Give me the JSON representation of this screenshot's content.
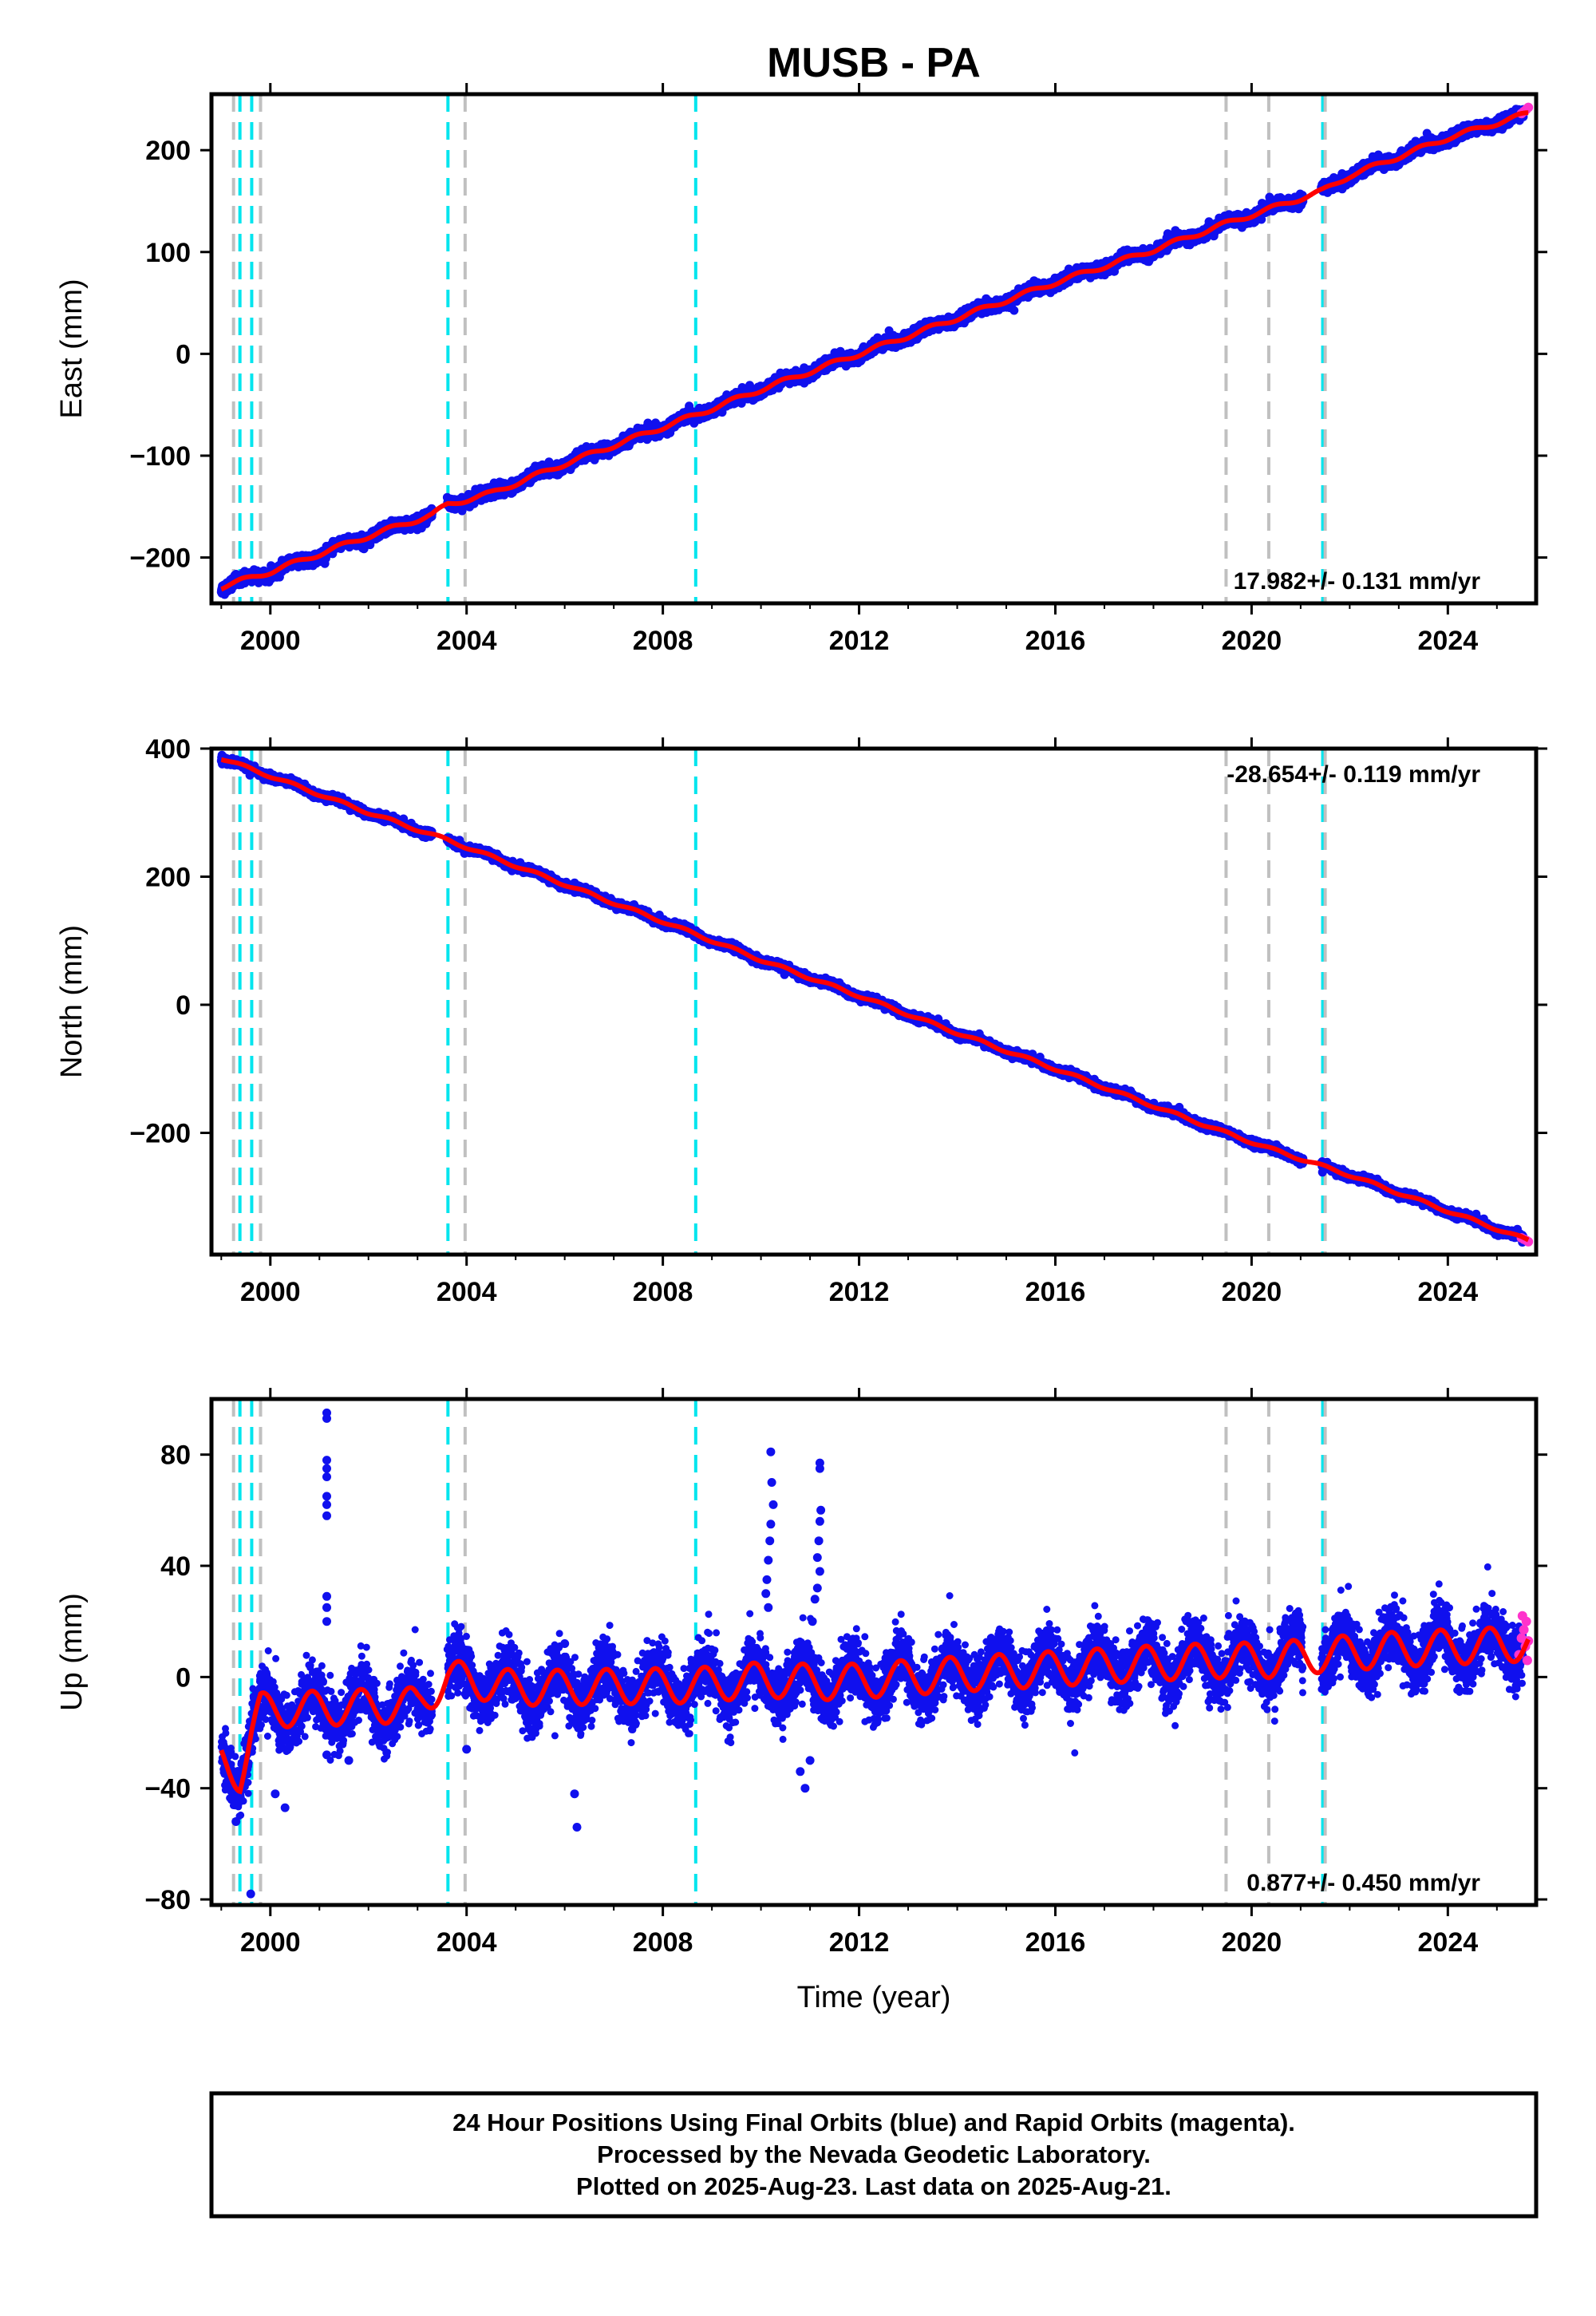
{
  "chart_data": {
    "type": "scatter",
    "title": "MUSB - PA",
    "xlabel": "Time (year)",
    "xlim": [
      1998.8,
      2025.8
    ],
    "x_ticks": [
      2000,
      2004,
      2008,
      2012,
      2016,
      2020,
      2024
    ],
    "x_tick_labels": [
      "2000",
      "2004",
      "2008",
      "2012",
      "2016",
      "2020",
      "2024"
    ],
    "data_start": 1999.0,
    "data_end": 2025.64,
    "steps": [
      {
        "year": 1999.38,
        "kind": "cyan"
      },
      {
        "year": 1999.62,
        "kind": "cyan"
      },
      {
        "year": 1999.25,
        "kind": "gray"
      },
      {
        "year": 1999.8,
        "kind": "gray"
      },
      {
        "year": 2003.62,
        "kind": "cyan"
      },
      {
        "year": 2003.97,
        "kind": "gray"
      },
      {
        "year": 2008.67,
        "kind": "cyan"
      },
      {
        "year": 2019.48,
        "kind": "gray"
      },
      {
        "year": 2020.35,
        "kind": "gray"
      },
      {
        "year": 2021.45,
        "kind": "cyan"
      },
      {
        "year": 2021.5,
        "kind": "gray"
      }
    ],
    "series_colors": {
      "final": "#1010ee",
      "rapid": "#ff33cc",
      "model": "#ff0000",
      "step_cyan": "#00e5ee",
      "step_gray": "#c0c0c0"
    },
    "panels": [
      {
        "name": "east",
        "ylabel": "East (mm)",
        "ylim": [
          -245,
          255
        ],
        "y_ticks": [
          -200,
          -100,
          0,
          100,
          200
        ],
        "y_tick_labels": [
          "−200",
          "−100",
          "0",
          "100",
          "200"
        ],
        "rate_label": "17.982+/- 0.131 mm/yr",
        "rate_position": "bottom-right",
        "model_points": [
          [
            1999.0,
            -229
          ],
          [
            2000.0,
            -214
          ],
          [
            2002.0,
            -179
          ],
          [
            2003.3,
            -158
          ],
          [
            2003.62,
            -148
          ],
          [
            2004.5,
            -137
          ],
          [
            2006.0,
            -108
          ],
          [
            2008.0,
            -72
          ],
          [
            2008.67,
            -60
          ],
          [
            2010.0,
            -35
          ],
          [
            2012.0,
            0
          ],
          [
            2014.0,
            35
          ],
          [
            2016.0,
            70
          ],
          [
            2018.0,
            102
          ],
          [
            2019.48,
            128
          ],
          [
            2020.35,
            142
          ],
          [
            2021.45,
            160
          ],
          [
            2022.0,
            175
          ],
          [
            2024.0,
            212
          ],
          [
            2025.64,
            236
          ]
        ],
        "seasonal_amp": 2.5,
        "noise": 2.5,
        "rapid_points": [
          [
            2025.5,
            236
          ],
          [
            2025.55,
            238
          ],
          [
            2025.6,
            240
          ],
          [
            2025.64,
            242
          ]
        ]
      },
      {
        "name": "north",
        "ylabel": "North (mm)",
        "ylim": [
          -390,
          400
        ],
        "y_ticks": [
          -200,
          0,
          200,
          400
        ],
        "y_tick_labels": [
          "−200",
          "0",
          "200",
          "400"
        ],
        "rate_label": "-28.654+/- 0.119 mm/yr",
        "rate_position": "top-right",
        "model_points": [
          [
            1999.0,
            385
          ],
          [
            2000.0,
            357
          ],
          [
            2002.0,
            300
          ],
          [
            2003.62,
            257
          ],
          [
            2004.0,
            246
          ],
          [
            2006.0,
            188
          ],
          [
            2008.0,
            130
          ],
          [
            2008.67,
            110
          ],
          [
            2010.0,
            70
          ],
          [
            2012.0,
            14
          ],
          [
            2014.0,
            -44
          ],
          [
            2016.0,
            -100
          ],
          [
            2018.0,
            -158
          ],
          [
            2019.48,
            -200
          ],
          [
            2020.35,
            -224
          ],
          [
            2021.45,
            -252
          ],
          [
            2022.0,
            -266
          ],
          [
            2024.0,
            -322
          ],
          [
            2025.64,
            -368
          ]
        ],
        "seasonal_amp": 2.5,
        "noise": 2.5,
        "rapid_points": [
          [
            2025.5,
            -364
          ],
          [
            2025.55,
            -366
          ],
          [
            2025.6,
            -368
          ],
          [
            2025.64,
            -370
          ]
        ]
      },
      {
        "name": "up",
        "ylabel": "Up (mm)",
        "ylim": [
          -82,
          100
        ],
        "y_ticks": [
          -80,
          -40,
          0,
          40,
          80
        ],
        "y_tick_labels": [
          "−80",
          "−40",
          "0",
          "40",
          "80"
        ],
        "rate_label": "0.877+/- 0.450 mm/yr",
        "rate_position": "bottom-right",
        "model_points": [
          [
            1999.0,
            -30
          ],
          [
            1999.38,
            -35
          ],
          [
            1999.62,
            -20
          ],
          [
            1999.8,
            -12
          ],
          [
            2003.0,
            -10
          ],
          [
            2003.62,
            0
          ],
          [
            2005.0,
            -4
          ],
          [
            2008.67,
            -3
          ],
          [
            2010.0,
            -1
          ],
          [
            2011.5,
            -2
          ],
          [
            2014.0,
            1
          ],
          [
            2016.0,
            3
          ],
          [
            2018.0,
            5
          ],
          [
            2019.48,
            6
          ],
          [
            2020.35,
            6
          ],
          [
            2021.45,
            8
          ],
          [
            2023.0,
            10
          ],
          [
            2025.64,
            12
          ]
        ],
        "seasonal_amp": 7,
        "noise": 5,
        "outliers": [
          [
            2001.15,
            95
          ],
          [
            2001.15,
            93
          ],
          [
            2001.15,
            78
          ],
          [
            2001.15,
            75
          ],
          [
            2001.15,
            72
          ],
          [
            2001.15,
            65
          ],
          [
            2001.15,
            62
          ],
          [
            2001.15,
            58
          ],
          [
            2001.15,
            29
          ],
          [
            2001.15,
            25
          ],
          [
            2001.15,
            20
          ],
          [
            2001.15,
            -28
          ],
          [
            2000.1,
            -42
          ],
          [
            2000.3,
            -47
          ],
          [
            2006.2,
            -42
          ],
          [
            2006.25,
            -54
          ],
          [
            2006.0,
            12
          ],
          [
            2010.2,
            81
          ],
          [
            2010.22,
            70
          ],
          [
            2010.25,
            62
          ],
          [
            2010.2,
            55
          ],
          [
            2010.18,
            49
          ],
          [
            2010.15,
            42
          ],
          [
            2010.12,
            35
          ],
          [
            2010.1,
            30
          ],
          [
            2010.15,
            25
          ],
          [
            2011.2,
            77
          ],
          [
            2011.2,
            75
          ],
          [
            2011.22,
            60
          ],
          [
            2011.2,
            56
          ],
          [
            2011.18,
            49
          ],
          [
            2011.15,
            43
          ],
          [
            2011.2,
            38
          ],
          [
            2011.15,
            32
          ],
          [
            2011.1,
            28
          ],
          [
            2011.05,
            20
          ],
          [
            2011.0,
            -30
          ],
          [
            2010.8,
            -34
          ],
          [
            2010.9,
            -40
          ],
          [
            1999.6,
            -78
          ],
          [
            1999.3,
            -52
          ],
          [
            2004.0,
            -26
          ],
          [
            2001.6,
            -30
          ]
        ],
        "rapid_points": [
          [
            2025.45,
            8
          ],
          [
            2025.5,
            14
          ],
          [
            2025.52,
            22
          ],
          [
            2025.55,
            17
          ],
          [
            2025.58,
            11
          ],
          [
            2025.6,
            20
          ],
          [
            2025.62,
            6
          ],
          [
            2025.64,
            13
          ]
        ]
      }
    ]
  },
  "footer": {
    "line1": "24 Hour Positions Using Final Orbits (blue) and Rapid Orbits (magenta).",
    "line2": "Processed by the Nevada Geodetic Laboratory.",
    "line3": "Plotted on 2025-Aug-23. Last data on 2025-Aug-21."
  }
}
